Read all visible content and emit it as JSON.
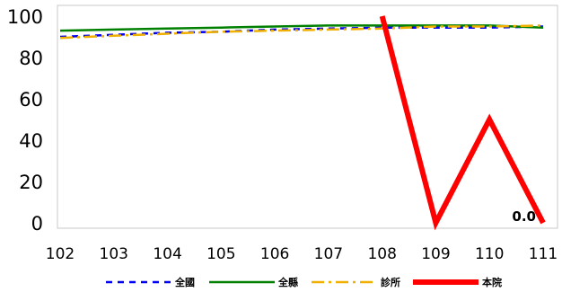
{
  "chart_data": {
    "type": "line",
    "x": [
      "102",
      "103",
      "104",
      "105",
      "106",
      "107",
      "108",
      "109",
      "110",
      "111"
    ],
    "y_ticks": [
      "0",
      "20",
      "40",
      "60",
      "80",
      "100"
    ],
    "ylim": [
      0,
      100
    ],
    "grid": false,
    "legend_position": "bottom",
    "series": [
      {
        "name": "全國",
        "color": "#0000ee",
        "dash": "7,6",
        "width": 2.5,
        "values": [
          90,
          91,
          92,
          92.5,
          93.5,
          94,
          94.5,
          94.5,
          94.5,
          95
        ]
      },
      {
        "name": "全縣",
        "color": "#008000",
        "dash": "",
        "width": 2.5,
        "values": [
          93,
          93.5,
          94,
          94.5,
          95,
          95.5,
          95.5,
          95.5,
          95.5,
          94.5
        ]
      },
      {
        "name": "診所",
        "color": "#f0b000",
        "dash": "14,5,3,5",
        "width": 2.5,
        "values": [
          89.5,
          90.5,
          91.5,
          92.5,
          93,
          93.5,
          94,
          95,
          95,
          95.5
        ]
      },
      {
        "name": "本院",
        "color": "#ff0000",
        "dash": "",
        "width": 6,
        "values": [
          null,
          null,
          null,
          null,
          null,
          null,
          100,
          0,
          50,
          0
        ]
      }
    ],
    "annotations": [
      {
        "series": "本院",
        "x": "111",
        "text": "0.0"
      }
    ]
  }
}
